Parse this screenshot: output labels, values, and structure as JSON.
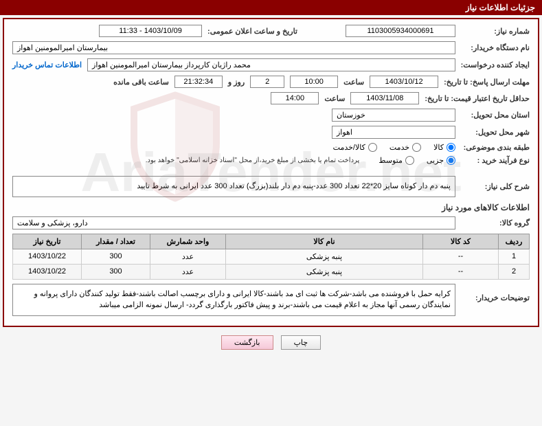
{
  "header": {
    "title": "جزئیات اطلاعات نیاز"
  },
  "fields": {
    "need_number_label": "شماره نیاز:",
    "need_number": "1103005934000691",
    "announce_date_label": "تاریخ و ساعت اعلان عمومی:",
    "announce_date": "1403/10/09 - 11:33",
    "buyer_org_label": "نام دستگاه خریدار:",
    "buyer_org": "بیمارستان امیرالمومنین اهواز",
    "requester_label": "ایجاد کننده درخواست:",
    "requester": "محمد راژیان کارپرداز بیمارستان امیرالمومنین اهواز",
    "contact_link": "اطلاعات تماس خریدار",
    "response_deadline_label": "مهلت ارسال پاسخ: تا تاریخ:",
    "response_date": "1403/10/12",
    "time_label": "ساعت",
    "response_time": "10:00",
    "days_remaining": "2",
    "days_and": "روز و",
    "time_remaining": "21:32:34",
    "remaining_label": "ساعت باقی مانده",
    "validity_label": "حداقل تاریخ اعتبار قیمت: تا تاریخ:",
    "validity_date": "1403/11/08",
    "validity_time": "14:00",
    "province_label": "استان محل تحویل:",
    "province": "خوزستان",
    "city_label": "شهر محل تحویل:",
    "city": "اهواز",
    "category_label": "طبقه بندی موضوعی:",
    "cat_goods": "کالا",
    "cat_service": "خدمت",
    "cat_goods_service": "کالا/خدمت",
    "process_label": "نوع فرآیند خرید :",
    "proc_partial": "جزیی",
    "proc_medium": "متوسط",
    "process_note": "پرداخت تمام یا بخشی از مبلغ خرید،از محل \"اسناد خزانه اسلامی\" خواهد بود.",
    "overview_label": "شرح کلی نیاز:",
    "overview": "پنبه دم دار کوتاه سایز 20*22 تعداد 300 عدد-پنبه دم دار بلند(بزرگ) تعداد 300 عدد ایرانی به شرط تایید",
    "goods_info_title": "اطلاعات کالاهای مورد نیاز",
    "group_label": "گروه کالا:",
    "group": "دارو، پزشکی و سلامت",
    "buyer_desc_label": "توضیحات خریدار:",
    "buyer_desc": "کرایه حمل با فروشنده می باشد-شرکت ها ثبت ای مد باشند-کالا ایرانی و دارای برچسب اصالت باشند-فقط تولید کنندگان دارای پروانه و نمایندگان رسمی آنها مجاز به اعلام قیمت می باشند-برند و پیش فاکتور بارگذاری گردد- ارسال نمونه الزامی میباشد"
  },
  "table": {
    "headers": {
      "row": "ردیف",
      "code": "کد کالا",
      "name": "نام کالا",
      "unit": "واحد شمارش",
      "qty": "تعداد / مقدار",
      "date": "تاریخ نیاز"
    },
    "rows": [
      {
        "row": "1",
        "code": "--",
        "name": "پنبه پزشکی",
        "unit": "عدد",
        "qty": "300",
        "date": "1403/10/22"
      },
      {
        "row": "2",
        "code": "--",
        "name": "پنبه پزشکی",
        "unit": "عدد",
        "qty": "300",
        "date": "1403/10/22"
      }
    ]
  },
  "buttons": {
    "print": "چاپ",
    "return": "بازگشت"
  },
  "watermark": "AriaTender.net"
}
